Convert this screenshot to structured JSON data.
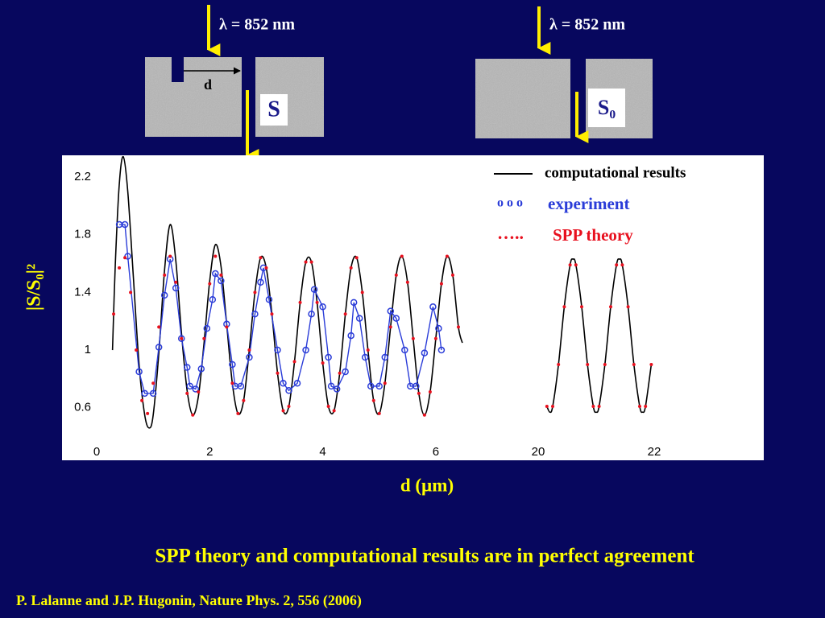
{
  "slide": {
    "wavelength_left": "λ = 852 nm",
    "slit_width": "d",
    "signal_left": "S",
    "wavelength_right": "λ = 852 nm",
    "signal_right": "S₀",
    "caption": "SPP theory and computational results are in perfect agreement",
    "citation": "P. Lalanne and J.P. Hugonin, Nature Phys. 2, 556 (2006)"
  },
  "chart_data": [
    {
      "type": "line",
      "xlabel": "d (µm)",
      "ylabel": "|S/S₀|²",
      "xlim": [
        0,
        6.6
      ],
      "xticks": [
        0,
        2,
        4,
        6
      ],
      "ylim": [
        0.37,
        2.35
      ],
      "yticks": [
        0.6,
        1,
        1.4,
        1.8,
        2.2
      ],
      "grid": false,
      "legend": "upper right",
      "series": [
        {
          "name": "computational results",
          "color": "#000000",
          "style": "line",
          "x": [
            0.28,
            0.33,
            0.4,
            0.47,
            0.55,
            0.65,
            0.75,
            0.85,
            0.93,
            1.0,
            1.1,
            1.2,
            1.3,
            1.4,
            1.5,
            1.6,
            1.7,
            1.8,
            1.9,
            2.0,
            2.1,
            2.2,
            2.3,
            2.4,
            2.5,
            2.6,
            2.7,
            2.8,
            2.9,
            3.0,
            3.1,
            3.2,
            3.3,
            3.4,
            3.5,
            3.6,
            3.7,
            3.8,
            3.9,
            4.0,
            4.1,
            4.2,
            4.3,
            4.4,
            4.5,
            4.6,
            4.7,
            4.8,
            4.9,
            5.0,
            5.1,
            5.2,
            5.3,
            5.4,
            5.5,
            5.6,
            5.7,
            5.8,
            5.9,
            6.0,
            6.1,
            6.2,
            6.3,
            6.4,
            6.47
          ],
          "values": [
            1.0,
            1.6,
            2.15,
            2.34,
            2.1,
            1.5,
            0.9,
            0.55,
            0.46,
            0.55,
            0.98,
            1.55,
            1.87,
            1.62,
            1.12,
            0.72,
            0.55,
            0.68,
            1.05,
            1.48,
            1.73,
            1.58,
            1.18,
            0.77,
            0.56,
            0.65,
            1.0,
            1.4,
            1.64,
            1.57,
            1.25,
            0.84,
            0.58,
            0.61,
            0.92,
            1.33,
            1.61,
            1.61,
            1.33,
            0.91,
            0.61,
            0.58,
            0.84,
            1.25,
            1.57,
            1.64,
            1.4,
            1.0,
            0.65,
            0.56,
            0.77,
            1.16,
            1.52,
            1.65,
            1.47,
            1.08,
            0.7,
            0.55,
            0.71,
            1.08,
            1.46,
            1.65,
            1.52,
            1.16,
            1.05
          ]
        },
        {
          "name": "experiment",
          "legend_symbol": "o o o",
          "color": "#2a3cd8",
          "style": "line-circles",
          "x": [
            0.4,
            0.5,
            0.55,
            0.75,
            0.85,
            1.0,
            1.1,
            1.2,
            1.3,
            1.4,
            1.5,
            1.6,
            1.65,
            1.75,
            1.85,
            1.95,
            2.05,
            2.1,
            2.2,
            2.3,
            2.4,
            2.45,
            2.55,
            2.7,
            2.8,
            2.9,
            2.95,
            3.05,
            3.2,
            3.3,
            3.4,
            3.55,
            3.7,
            3.8,
            3.85,
            4.0,
            4.1,
            4.15,
            4.25,
            4.4,
            4.5,
            4.55,
            4.65,
            4.75,
            4.85,
            5.0,
            5.1,
            5.2,
            5.3,
            5.45,
            5.55,
            5.65,
            5.8,
            5.95,
            6.05,
            6.1
          ],
          "values": [
            1.87,
            1.87,
            1.65,
            0.85,
            0.7,
            0.7,
            1.02,
            1.38,
            1.63,
            1.43,
            1.08,
            0.88,
            0.75,
            0.73,
            0.87,
            1.15,
            1.35,
            1.53,
            1.48,
            1.18,
            0.9,
            0.75,
            0.75,
            0.95,
            1.25,
            1.47,
            1.57,
            1.35,
            1.0,
            0.77,
            0.72,
            0.77,
            1.0,
            1.25,
            1.42,
            1.3,
            0.95,
            0.75,
            0.73,
            0.85,
            1.1,
            1.33,
            1.22,
            0.95,
            0.75,
            0.75,
            0.95,
            1.27,
            1.22,
            1.0,
            0.75,
            0.75,
            0.98,
            1.3,
            1.15,
            1.0
          ]
        },
        {
          "name": "SPP theory",
          "legend_symbol": "…..",
          "color": "#e8101e",
          "style": "dots",
          "x": [
            0.3,
            0.4,
            0.5,
            0.6,
            0.7,
            0.8,
            0.9,
            1.0,
            1.1,
            1.2,
            1.3,
            1.4,
            1.5,
            1.6,
            1.7,
            1.8,
            1.9,
            2.0,
            2.1,
            2.2,
            2.3,
            2.4,
            2.5,
            2.6,
            2.7,
            2.8,
            2.9,
            3.0,
            3.1,
            3.2,
            3.3,
            3.4,
            3.5,
            3.6,
            3.7,
            3.8,
            3.9,
            4.0,
            4.1,
            4.2,
            4.3,
            4.4,
            4.5,
            4.6,
            4.7,
            4.8,
            4.9,
            5.0,
            5.1,
            5.2,
            5.3,
            5.4,
            5.5,
            5.6,
            5.7,
            5.8,
            5.9,
            6.0,
            6.1,
            6.2,
            6.3,
            6.4
          ],
          "values": [
            1.25,
            1.57,
            1.64,
            1.4,
            1.0,
            0.65,
            0.56,
            0.77,
            1.16,
            1.52,
            1.65,
            1.47,
            1.08,
            0.7,
            0.55,
            0.71,
            1.08,
            1.46,
            1.65,
            1.52,
            1.16,
            0.77,
            0.56,
            0.65,
            1.0,
            1.4,
            1.64,
            1.57,
            1.25,
            0.84,
            0.58,
            0.61,
            0.92,
            1.33,
            1.61,
            1.61,
            1.33,
            0.91,
            0.61,
            0.58,
            0.84,
            1.25,
            1.57,
            1.64,
            1.4,
            1.0,
            0.65,
            0.56,
            0.77,
            1.16,
            1.52,
            1.65,
            1.47,
            1.08,
            0.7,
            0.55,
            0.71,
            1.08,
            1.46,
            1.65,
            1.52,
            1.16
          ]
        }
      ]
    },
    {
      "type": "line",
      "xlim": [
        19.85,
        22.05
      ],
      "xticks": [
        20,
        22
      ],
      "ylim": [
        0.37,
        2.35
      ],
      "grid": false,
      "series": [
        {
          "color": "#000000",
          "style": "line",
          "x": [
            20.15,
            20.2,
            20.25,
            20.35,
            20.45,
            20.55,
            20.6,
            20.65,
            20.75,
            20.85,
            20.95,
            21.0,
            21.05,
            21.15,
            21.25,
            21.35,
            21.4,
            21.45,
            21.55,
            21.65,
            21.75,
            21.8,
            21.85,
            21.95
          ],
          "values": [
            0.61,
            0.57,
            0.61,
            0.9,
            1.3,
            1.59,
            1.63,
            1.59,
            1.3,
            0.9,
            0.61,
            0.57,
            0.61,
            0.9,
            1.3,
            1.59,
            1.63,
            1.59,
            1.3,
            0.9,
            0.61,
            0.57,
            0.61,
            0.9
          ]
        },
        {
          "color": "#e8101e",
          "style": "dots",
          "x": [
            20.15,
            20.25,
            20.35,
            20.45,
            20.55,
            20.65,
            20.75,
            20.85,
            20.95,
            21.05,
            21.15,
            21.25,
            21.35,
            21.45,
            21.55,
            21.65,
            21.75,
            21.85,
            21.95
          ],
          "values": [
            0.61,
            0.61,
            0.9,
            1.3,
            1.59,
            1.59,
            1.3,
            0.9,
            0.61,
            0.61,
            0.9,
            1.3,
            1.59,
            1.59,
            1.3,
            0.9,
            0.61,
            0.61,
            0.9
          ]
        }
      ]
    }
  ]
}
